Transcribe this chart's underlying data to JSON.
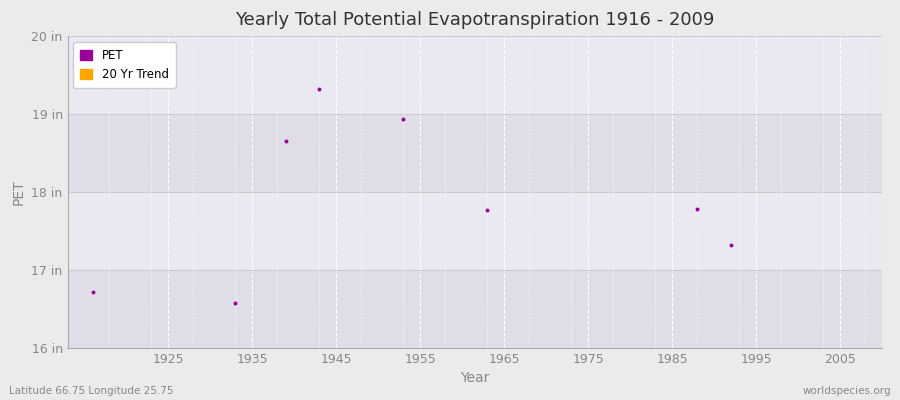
{
  "title": "Yearly Total Potential Evapotranspiration 1916 - 2009",
  "xlabel": "Year",
  "ylabel": "PET",
  "xlim": [
    1913,
    2010
  ],
  "ylim": [
    16,
    20
  ],
  "yticks": [
    16,
    17,
    18,
    19,
    20
  ],
  "ytick_labels": [
    "16 in",
    "17 in",
    "18 in",
    "19 in",
    "20 in"
  ],
  "xticks": [
    1925,
    1935,
    1945,
    1955,
    1965,
    1975,
    1985,
    1995,
    2005
  ],
  "background_color": "#ebebeb",
  "plot_bg_color": "#e8e8ee",
  "band_colors": [
    "#e0dde8",
    "#eae8f0"
  ],
  "grid_color_v": "#ffffff",
  "grid_color_h": "#cccccc",
  "scatter_color": "#990099",
  "trend_color": "#ffa500",
  "data_points": [
    [
      1916,
      16.72
    ],
    [
      1933,
      16.58
    ],
    [
      1939,
      18.65
    ],
    [
      1943,
      19.32
    ],
    [
      1953,
      18.93
    ],
    [
      1963,
      17.77
    ],
    [
      1988,
      17.78
    ],
    [
      1992,
      17.32
    ]
  ],
  "footnote_left": "Latitude 66.75 Longitude 25.75",
  "footnote_right": "worldspecies.org",
  "legend_entries": [
    "PET",
    "20 Yr Trend"
  ],
  "legend_colors": [
    "#990099",
    "#ffa500"
  ],
  "title_color": "#333333",
  "label_color": "#888888",
  "tick_color": "#888888"
}
